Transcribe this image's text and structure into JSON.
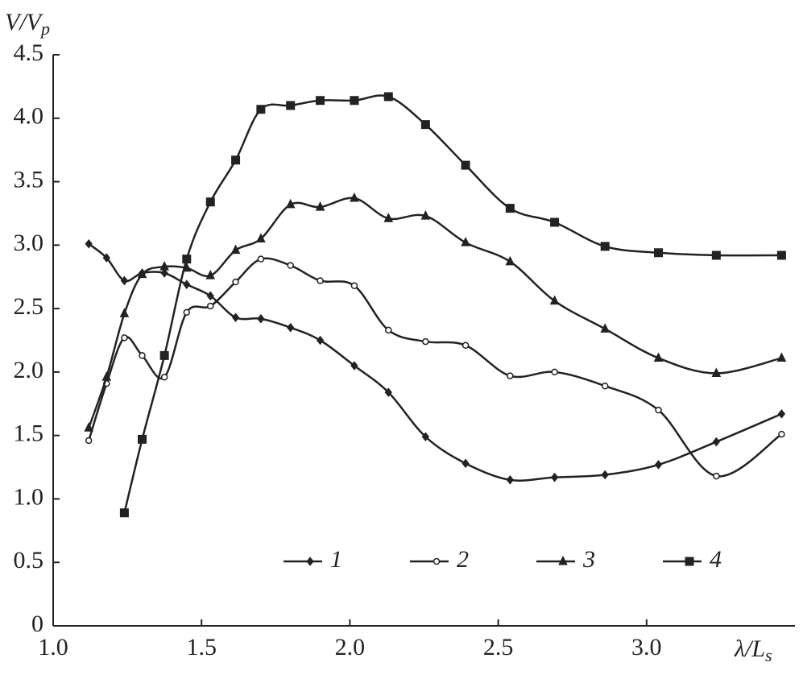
{
  "chart_data": {
    "type": "line",
    "ylabel": {
      "main": "V/V",
      "sub": "p"
    },
    "xlabel": {
      "main": "λ/L",
      "sub": "s"
    },
    "xlim": [
      1.0,
      3.5
    ],
    "ylim": [
      0,
      4.5
    ],
    "xticks": [
      {
        "value": 1,
        "label": "1.0"
      },
      1.5,
      {
        "value": 2,
        "label": "2.0"
      },
      2.5,
      {
        "value": 3,
        "label": "3.0"
      }
    ],
    "yticks": [
      0,
      0.5,
      {
        "value": 1,
        "label": "1.0"
      },
      1.5,
      {
        "value": 2,
        "label": "2.0"
      },
      2.5,
      {
        "value": 3,
        "label": "3.0"
      },
      3.5,
      {
        "value": 4,
        "label": "4.0"
      },
      4.5
    ],
    "legend": "lower right",
    "series": [
      {
        "name": "1",
        "color": "#222222",
        "marker": "diamond",
        "x": [
          1.12,
          1.18,
          1.24,
          1.3,
          1.375,
          1.45,
          1.53,
          1.615,
          1.7,
          1.8,
          1.9,
          2.015,
          2.13,
          2.255,
          2.39,
          2.54,
          2.69,
          2.86,
          3.04,
          3.235,
          3.455
        ],
        "values": [
          3.01,
          2.9,
          2.72,
          2.78,
          2.78,
          2.69,
          2.6,
          2.43,
          2.42,
          2.35,
          2.25,
          2.05,
          1.84,
          1.49,
          1.28,
          1.15,
          1.17,
          1.19,
          1.27,
          1.45,
          1.67
        ]
      },
      {
        "name": "2",
        "color": "#222222",
        "marker": "circle",
        "x": [
          1.12,
          1.18,
          1.24,
          1.3,
          1.375,
          1.45,
          1.53,
          1.615,
          1.7,
          1.8,
          1.9,
          2.015,
          2.13,
          2.255,
          2.39,
          2.54,
          2.69,
          2.86,
          3.04,
          3.235,
          3.455
        ],
        "values": [
          1.46,
          1.91,
          2.27,
          2.13,
          1.96,
          2.47,
          2.52,
          2.71,
          2.89,
          2.84,
          2.72,
          2.68,
          2.33,
          2.24,
          2.21,
          1.97,
          2.0,
          1.89,
          1.7,
          1.18,
          1.51
        ]
      },
      {
        "name": "3",
        "color": "#222222",
        "marker": "triangle",
        "x": [
          1.12,
          1.18,
          1.24,
          1.3,
          1.375,
          1.45,
          1.53,
          1.615,
          1.7,
          1.8,
          1.9,
          2.015,
          2.13,
          2.255,
          2.39,
          2.54,
          2.69,
          2.86,
          3.04,
          3.235,
          3.455
        ],
        "values": [
          1.56,
          1.96,
          2.46,
          2.77,
          2.83,
          2.82,
          2.76,
          2.96,
          3.05,
          3.32,
          3.3,
          3.37,
          3.21,
          3.23,
          3.02,
          2.87,
          2.56,
          2.34,
          2.11,
          1.99,
          2.11
        ]
      },
      {
        "name": "4",
        "color": "#222222",
        "marker": "square",
        "x": [
          1.24,
          1.3,
          1.375,
          1.45,
          1.53,
          1.615,
          1.7,
          1.8,
          1.9,
          2.015,
          2.13,
          2.255,
          2.39,
          2.54,
          2.69,
          2.86,
          3.04,
          3.235,
          3.455
        ],
        "values": [
          0.89,
          1.47,
          2.13,
          2.89,
          3.34,
          3.67,
          4.07,
          4.1,
          4.14,
          4.14,
          4.17,
          3.95,
          3.63,
          3.29,
          3.18,
          2.99,
          2.94,
          2.92,
          2.92
        ]
      }
    ]
  }
}
